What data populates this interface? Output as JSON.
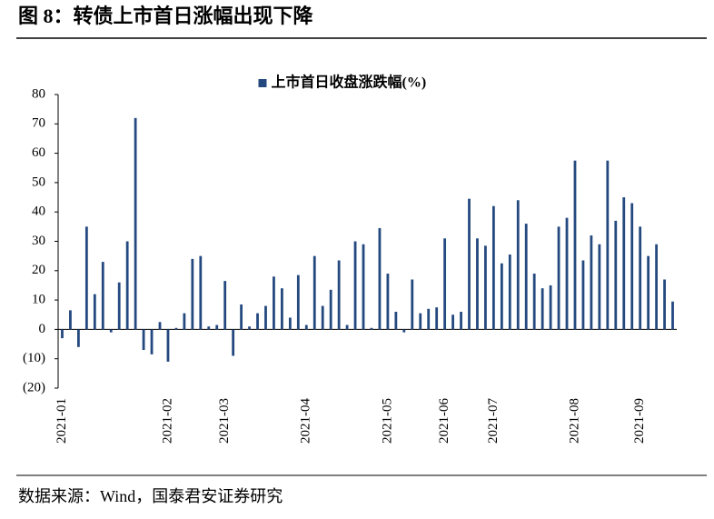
{
  "chart_data": {
    "type": "bar",
    "title": "图 8：转债上市首日涨幅出现下降",
    "series": [
      {
        "name": "上市首日收盘涨跌幅(%)",
        "color": "#24497f",
        "values": [
          -3,
          6.5,
          -6,
          35,
          12,
          23,
          -1,
          16,
          30,
          72,
          -7,
          -8.5,
          2.5,
          -11,
          0.5,
          5.5,
          24,
          25,
          1,
          1.5,
          16.5,
          -9,
          8.5,
          1,
          5.5,
          8,
          18,
          14,
          4,
          18.5,
          1.5,
          25,
          8,
          13.5,
          23.5,
          1.5,
          30,
          29,
          0.5,
          34.5,
          19,
          6,
          -1,
          17,
          5.5,
          7,
          7.5,
          31,
          5,
          6,
          44.5,
          31,
          28.5,
          42,
          22.5,
          25.5,
          44,
          36,
          19,
          14,
          15,
          35,
          38,
          57.5,
          23.5,
          32,
          29,
          57.5,
          37,
          45,
          43,
          35,
          25,
          29,
          17,
          9.5
        ]
      }
    ],
    "categories": [
      "2021-01",
      null,
      null,
      null,
      null,
      null,
      null,
      null,
      null,
      null,
      null,
      null,
      null,
      "2021-02",
      null,
      null,
      null,
      null,
      null,
      null,
      "2021-03",
      null,
      null,
      null,
      null,
      null,
      null,
      null,
      null,
      null,
      "2021-04",
      null,
      null,
      null,
      null,
      null,
      null,
      null,
      null,
      null,
      "2021-05",
      null,
      null,
      null,
      null,
      null,
      null,
      "2021-06",
      null,
      null,
      null,
      null,
      null,
      "2021-07",
      null,
      null,
      null,
      null,
      null,
      null,
      null,
      null,
      null,
      "2021-08",
      null,
      null,
      null,
      null,
      null,
      null,
      null,
      "2021-09",
      null,
      null,
      null,
      null
    ],
    "ylim": [
      -20,
      80
    ],
    "yticks": [
      80,
      70,
      60,
      50,
      40,
      30,
      20,
      10,
      0,
      {
        "value": -10,
        "label": "(10)"
      },
      {
        "value": -20,
        "label": "(20)"
      }
    ],
    "negative_tick_color": "#c00000",
    "legend": "top",
    "source": "数据来源：Wind，国泰君安证券研究"
  }
}
